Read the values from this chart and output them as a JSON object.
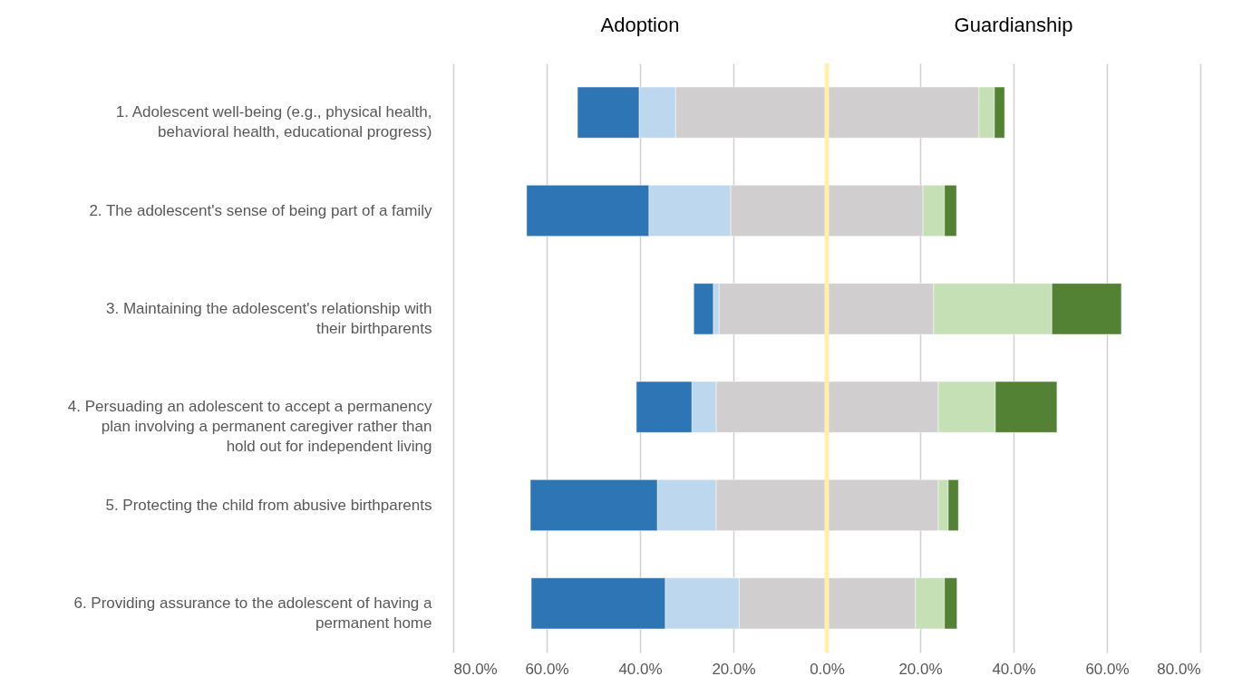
{
  "chart_data": {
    "type": "bar",
    "orientation": "horizontal",
    "stacked": true,
    "categories": [
      "1. Adolescent well-being (e.g., physical health, behavioral health, educational progress)",
      "2. The adolescent's sense of being part of a family",
      "3. Maintaining the adolescent's relationship with their birthparents",
      "4. Persuading an adolescent to accept a permanency plan involving a permanent caregiver rather than hold out for independent living",
      "5. Protecting the child from abusive birthparents",
      "6. Providing assurance to the adolescent of having a permanent home"
    ],
    "series": [
      {
        "color": "#d0cece",
        "values": [
          -32.4,
          -20.6,
          -23.1,
          -23.7,
          -23.7,
          -18.8
        ]
      },
      {
        "color": "#bdd7ee",
        "values": [
          -7.8,
          -17.5,
          -1.2,
          -5.2,
          -12.6,
          -15.8
        ]
      },
      {
        "color": "#2e75b6",
        "values": [
          -13.2,
          -26.2,
          -4.2,
          -11.9,
          -27.2,
          -28.7
        ]
      },
      {
        "color": "#d0cece",
        "values": [
          32.6,
          20.6,
          22.9,
          23.9,
          23.9,
          19.0
        ]
      },
      {
        "color": "#c5e0b4",
        "values": [
          3.3,
          4.6,
          25.3,
          12.2,
          2.1,
          6.2
        ]
      },
      {
        "color": "#548235",
        "values": [
          2.2,
          2.6,
          14.9,
          13.2,
          2.2,
          2.7
        ]
      }
    ],
    "xlim": [
      -80,
      80
    ],
    "xticks": [
      {
        "value": -80,
        "label": "80.0%"
      },
      {
        "value": -60,
        "label": "60.0%"
      },
      {
        "value": -40,
        "label": "40.0%"
      },
      {
        "value": -20,
        "label": "20.0%"
      },
      {
        "value": 0,
        "label": "0.0%"
      },
      {
        "value": 20,
        "label": "20.0%"
      },
      {
        "value": 40,
        "label": "40.0%"
      },
      {
        "value": 60,
        "label": "60.0%"
      },
      {
        "value": 80,
        "label": "80.0%"
      }
    ],
    "annotations": [
      "Adoption",
      "Guardianship"
    ],
    "ref_lines": [
      {
        "axis": "x",
        "value": 0,
        "color": "#fff2a8"
      }
    ],
    "grid": "x",
    "legend": false
  }
}
